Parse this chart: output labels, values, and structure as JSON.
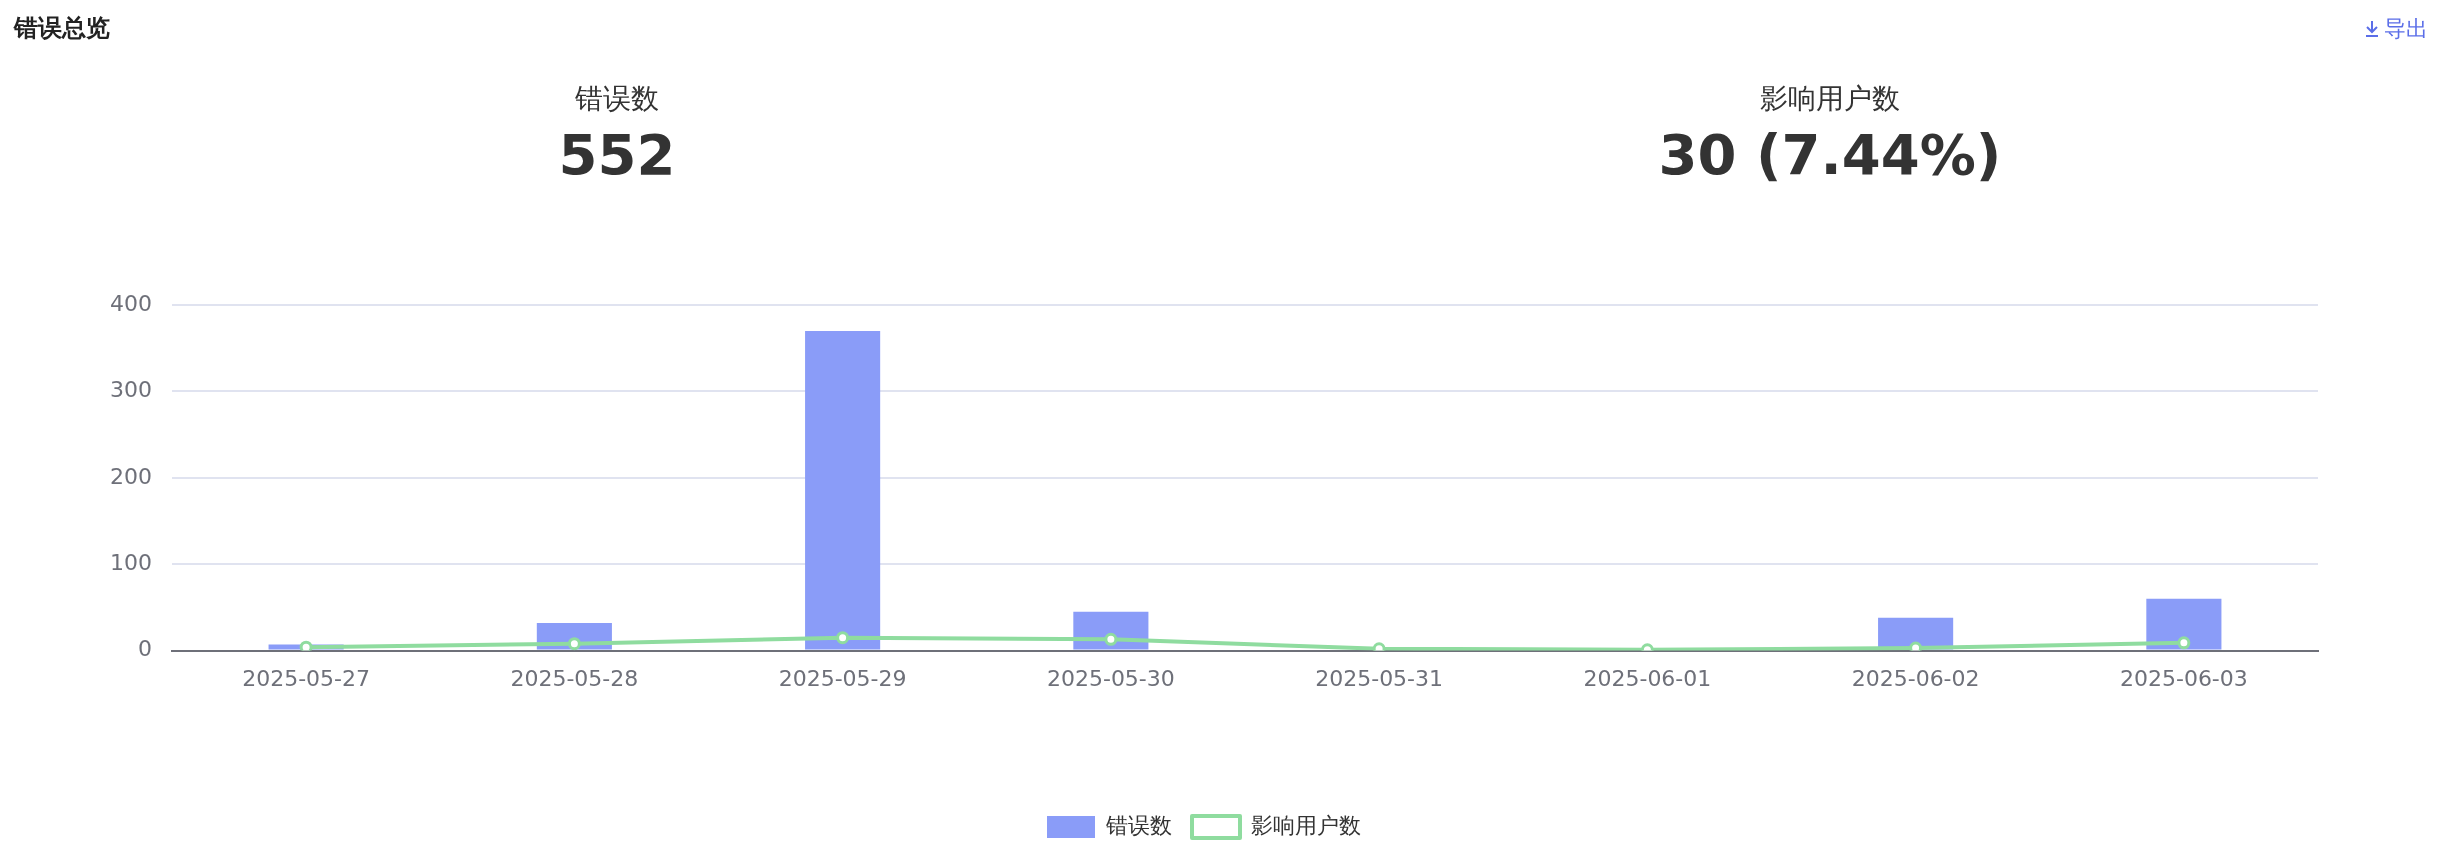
{
  "chart_data": {
    "type": "bar",
    "title": "错误总览",
    "annotations": [
      "错误数",
      "552",
      "影响用户数",
      "30 (7.44%)",
      "导出"
    ],
    "categories": [
      "2025-05-27",
      "2025-05-28",
      "2025-05-29",
      "2025-05-30",
      "2025-05-31",
      "2025-06-01",
      "2025-06-02",
      "2025-06-03"
    ],
    "series": [
      {
        "name": "错误数",
        "color": "#8a9cf8",
        "values": [
          7,
          32,
          370,
          45,
          0,
          0,
          38,
          60
        ]
      },
      {
        "name": "影响用户数",
        "type": "line",
        "color": "#8fdc9f",
        "values": [
          4,
          8,
          15,
          13,
          2,
          1,
          3,
          9
        ]
      }
    ],
    "ylim": [
      0,
      400
    ],
    "yticks": [
      0,
      100,
      200,
      300,
      400
    ],
    "grid": "y",
    "legend": "bottom",
    "marker": "circle",
    "line_style": "solid"
  }
}
